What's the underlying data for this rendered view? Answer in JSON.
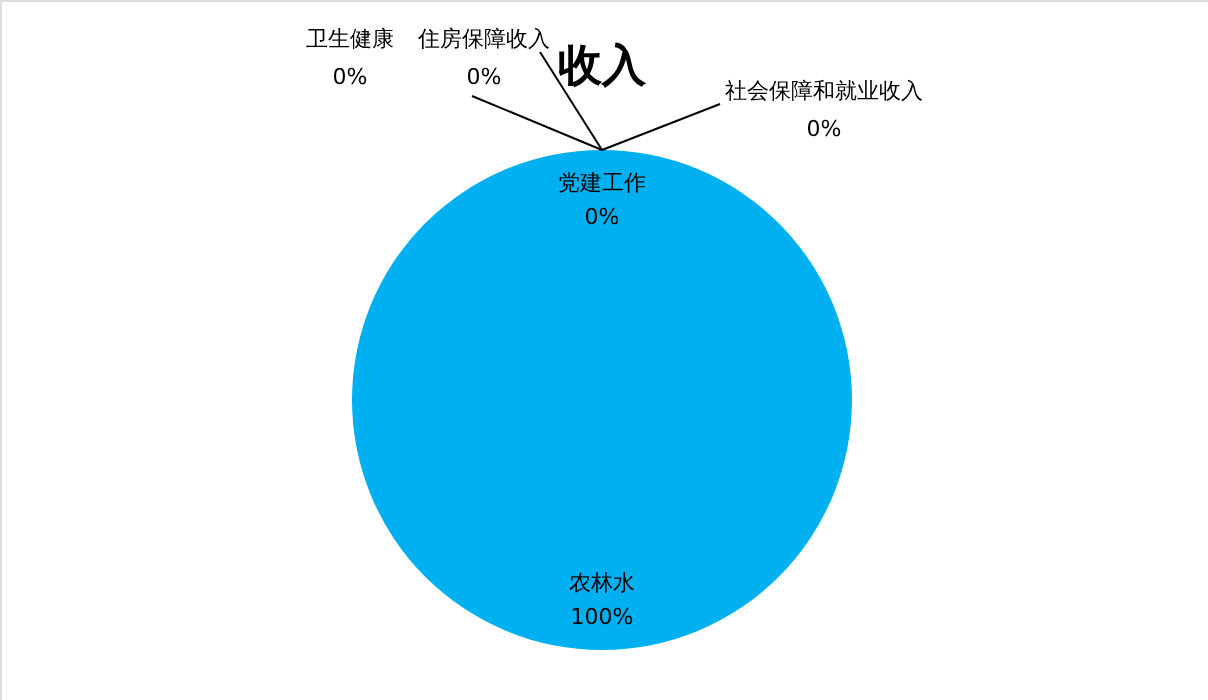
{
  "chart_data": {
    "type": "pie",
    "title": "收入",
    "categories": [
      "农林水",
      "党建工作",
      "社会保障和就业收入",
      "卫生健康",
      "住房保障收入"
    ],
    "values": [
      100,
      0,
      0,
      0,
      0
    ],
    "value_labels": [
      "100%",
      "0%",
      "0%",
      "0%",
      "0%"
    ],
    "colors": [
      "#00b0f0",
      "#ed7d31",
      "#a5a5a5",
      "#ffc000",
      "#4472c4"
    ],
    "legend": false
  }
}
